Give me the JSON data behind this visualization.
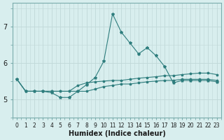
{
  "xlabel": "Humidex (Indice chaleur)",
  "x": [
    0,
    1,
    2,
    3,
    4,
    5,
    6,
    7,
    8,
    9,
    10,
    11,
    12,
    13,
    14,
    15,
    16,
    17,
    18,
    19,
    20,
    21,
    22,
    23
  ],
  "line1": [
    5.55,
    5.22,
    5.22,
    5.22,
    5.18,
    5.05,
    5.05,
    5.22,
    5.4,
    5.6,
    6.05,
    7.35,
    6.85,
    6.55,
    6.25,
    6.42,
    6.2,
    5.9,
    5.45,
    5.52,
    5.52,
    5.52,
    5.52,
    5.48
  ],
  "line2": [
    5.55,
    5.22,
    5.22,
    5.22,
    5.22,
    5.22,
    5.22,
    5.38,
    5.45,
    5.48,
    5.5,
    5.52,
    5.52,
    5.55,
    5.58,
    5.6,
    5.62,
    5.65,
    5.65,
    5.68,
    5.7,
    5.72,
    5.72,
    5.68
  ],
  "line3": [
    5.55,
    5.22,
    5.22,
    5.22,
    5.22,
    5.22,
    5.22,
    5.22,
    5.22,
    5.28,
    5.35,
    5.38,
    5.42,
    5.42,
    5.45,
    5.48,
    5.5,
    5.52,
    5.52,
    5.55,
    5.55,
    5.55,
    5.55,
    5.52
  ],
  "line_color": "#2e7d7d",
  "bg_color": "#d8eeee",
  "grid_major_color": "#c0d8d8",
  "grid_minor_color": "#d0e8e8",
  "ylim": [
    4.65,
    7.65
  ],
  "yticks": [
    5,
    6,
    7
  ],
  "xticks": [
    0,
    1,
    2,
    3,
    4,
    5,
    6,
    7,
    8,
    9,
    10,
    11,
    12,
    13,
    14,
    15,
    16,
    17,
    18,
    19,
    20,
    21,
    22,
    23
  ],
  "xlabel_fontsize": 7,
  "ytick_fontsize": 7,
  "xtick_fontsize": 5.5
}
